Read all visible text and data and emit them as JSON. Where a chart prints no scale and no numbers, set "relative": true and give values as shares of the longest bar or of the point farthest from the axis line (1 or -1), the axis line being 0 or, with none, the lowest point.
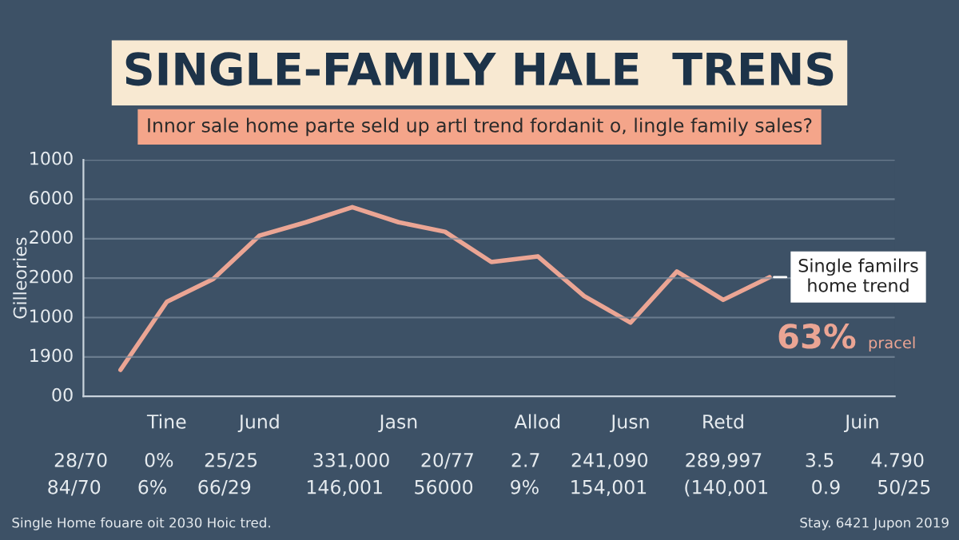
{
  "chart_data": {
    "type": "line",
    "title": "SINGLE-FAMILY HALE  TRENS",
    "subtitle": "Innor sale home parte seld up artl trend fordanit o, lingle family sales?",
    "ylabel": "Gilleories",
    "categories": [
      null,
      "Tine",
      null,
      "Jund",
      null,
      null,
      "Jasn",
      null,
      null,
      "Allod",
      null,
      "Jusn",
      null,
      "Retd",
      null,
      null,
      "Juin"
    ],
    "relative": true,
    "series": [
      {
        "color": "#eba594",
        "values": [
          0.14,
          0.5,
          0.62,
          0.85,
          0.92,
          1,
          0.92,
          0.87,
          0.71,
          0.74,
          0.53,
          0.39,
          0.66,
          0.51,
          0.63,
          null,
          null
        ]
      }
    ],
    "grid": "y",
    "marker": "none",
    "line_style": "solid",
    "annotations": [
      "Single familrs\nhome trend",
      "63%",
      "pracel",
      "28/70      0%     25/25         331,000     20/77      2.7     241,090      289,997       3.5      4.790",
      "84/70      6%     66/29         146,001     56000      9%     154,001      (140,001       0.9      50/25",
      "Single Home fouare oit 2030 Hoic tred.",
      "Stay. 6421 Jupon 2019",
      "00",
      "1900",
      "1000",
      "2000",
      "2000",
      "6000",
      "1000"
    ]
  }
}
